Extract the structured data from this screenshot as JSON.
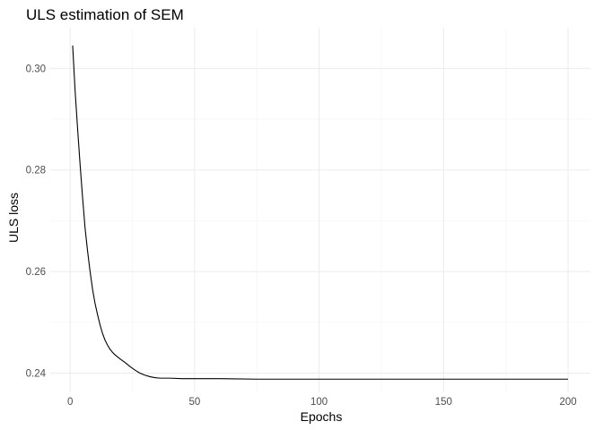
{
  "chart_data": {
    "type": "line",
    "title": "ULS estimation of SEM",
    "xlabel": "Epochs",
    "ylabel": "ULS loss",
    "xlim": [
      -8,
      209
    ],
    "ylim": [
      0.2362,
      0.308
    ],
    "x_ticks": [
      0,
      50,
      100,
      150,
      200
    ],
    "y_ticks": [
      0.24,
      0.26,
      0.28,
      0.3
    ],
    "y_tick_labels": [
      "0.24",
      "0.26",
      "0.28",
      "0.30"
    ],
    "grid": true,
    "series": [
      {
        "color": "#000000",
        "x": [
          1,
          2,
          3,
          4,
          5,
          6,
          7,
          8,
          9,
          10,
          11,
          12,
          13,
          14,
          15,
          16,
          17,
          18,
          19,
          20,
          22,
          24,
          26,
          28,
          30,
          32,
          34,
          36,
          40,
          45,
          50,
          60,
          75,
          100,
          125,
          150,
          175,
          200
        ],
        "y": [
          0.3045,
          0.2955,
          0.288,
          0.281,
          0.2745,
          0.2685,
          0.264,
          0.26,
          0.2565,
          0.2537,
          0.2515,
          0.2495,
          0.2478,
          0.2465,
          0.2455,
          0.2447,
          0.2441,
          0.2436,
          0.2432,
          0.2428,
          0.2421,
          0.2413,
          0.2406,
          0.24,
          0.2396,
          0.2393,
          0.2391,
          0.239,
          0.239,
          0.2389,
          0.2389,
          0.2389,
          0.2388,
          0.2388,
          0.2388,
          0.2388,
          0.2388,
          0.2388
        ]
      }
    ]
  }
}
